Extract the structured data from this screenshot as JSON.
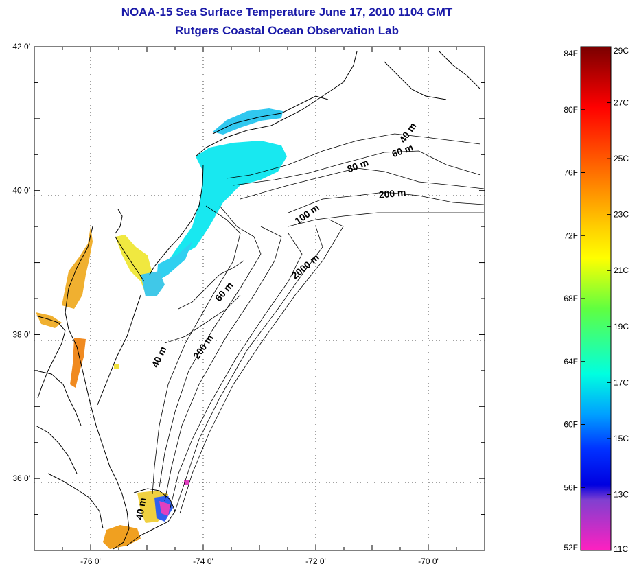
{
  "header": {
    "title": "NOAA-15 Sea Surface Temperature June 17, 2010 1104 GMT",
    "subtitle": "Rutgers Coastal Ocean Observation Lab"
  },
  "map": {
    "lat_labels": [
      "42 0'",
      "40 0'",
      "38 0'",
      "36 0'"
    ],
    "lon_labels": [
      "-76 0'",
      "-74 0'",
      "-72 0'",
      "-70 0'"
    ],
    "lat_values": [
      42,
      40,
      38,
      36
    ],
    "lon_values": [
      -76,
      -74,
      -72,
      -70
    ],
    "lat_range": [
      35,
      42
    ],
    "lon_range": [
      -77,
      -69
    ],
    "gridlines": "dotted",
    "isobath_labels": [
      "40 m",
      "60 m",
      "80 m",
      "200 m",
      "100 m",
      "2000 m",
      "60 m",
      "40 m",
      "200 m",
      "40 m"
    ]
  },
  "colorbar": {
    "f_labels": [
      "84F",
      "80F",
      "76F",
      "72F",
      "68F",
      "64F",
      "60F",
      "56F",
      "52F"
    ],
    "c_labels": [
      "29C",
      "27C",
      "25C",
      "23C",
      "21C",
      "19C",
      "17C",
      "15C",
      "13C",
      "11C"
    ],
    "f_range": [
      52,
      84
    ],
    "c_range": [
      11,
      29
    ],
    "colors": [
      "#8b0000",
      "#ff0000",
      "#ff8000",
      "#ffff00",
      "#80ff00",
      "#00ffff",
      "#0080ff",
      "#0000ff",
      "#8000c0",
      "#ff00ff"
    ]
  }
}
